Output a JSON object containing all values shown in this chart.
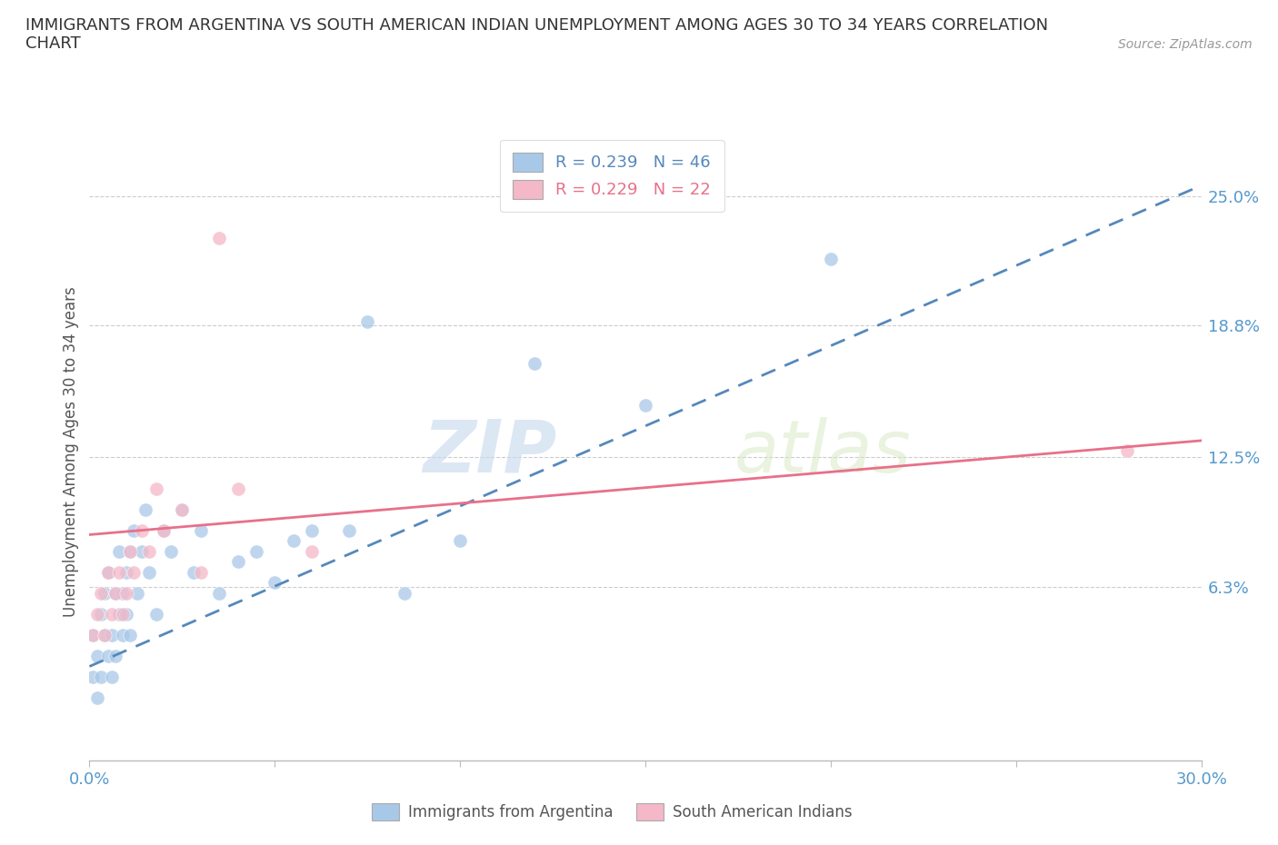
{
  "title": "IMMIGRANTS FROM ARGENTINA VS SOUTH AMERICAN INDIAN UNEMPLOYMENT AMONG AGES 30 TO 34 YEARS CORRELATION\nCHART",
  "source_text": "Source: ZipAtlas.com",
  "ylabel": "Unemployment Among Ages 30 to 34 years",
  "xlim": [
    0.0,
    0.3
  ],
  "ylim": [
    -0.02,
    0.275
  ],
  "xticks": [
    0.0,
    0.05,
    0.1,
    0.15,
    0.2,
    0.25,
    0.3
  ],
  "xticklabels": [
    "0.0%",
    "",
    "",
    "",
    "",
    "",
    "30.0%"
  ],
  "ytick_labels_right": [
    "6.3%",
    "12.5%",
    "18.8%",
    "25.0%"
  ],
  "ytick_values_right": [
    0.063,
    0.125,
    0.188,
    0.25
  ],
  "color_blue": "#a8c8e8",
  "color_pink": "#f4b8c8",
  "color_blue_line": "#5588bb",
  "color_pink_line": "#e8708a",
  "legend_r1": "R = 0.239",
  "legend_n1": "N = 46",
  "legend_r2": "R = 0.229",
  "legend_n2": "N = 22",
  "watermark_zip": "ZIP",
  "watermark_atlas": "atlas",
  "blue_scatter_x": [
    0.001,
    0.001,
    0.002,
    0.002,
    0.003,
    0.003,
    0.004,
    0.004,
    0.005,
    0.005,
    0.006,
    0.006,
    0.007,
    0.007,
    0.008,
    0.008,
    0.009,
    0.009,
    0.01,
    0.01,
    0.011,
    0.011,
    0.012,
    0.013,
    0.014,
    0.015,
    0.016,
    0.018,
    0.02,
    0.022,
    0.025,
    0.028,
    0.03,
    0.035,
    0.04,
    0.045,
    0.05,
    0.055,
    0.06,
    0.07,
    0.075,
    0.085,
    0.1,
    0.12,
    0.15,
    0.2
  ],
  "blue_scatter_y": [
    0.04,
    0.02,
    0.03,
    0.01,
    0.05,
    0.02,
    0.04,
    0.06,
    0.03,
    0.07,
    0.04,
    0.02,
    0.06,
    0.03,
    0.05,
    0.08,
    0.04,
    0.06,
    0.07,
    0.05,
    0.08,
    0.04,
    0.09,
    0.06,
    0.08,
    0.1,
    0.07,
    0.05,
    0.09,
    0.08,
    0.1,
    0.07,
    0.09,
    0.06,
    0.075,
    0.08,
    0.065,
    0.085,
    0.09,
    0.09,
    0.19,
    0.06,
    0.085,
    0.17,
    0.15,
    0.22
  ],
  "pink_scatter_x": [
    0.001,
    0.002,
    0.003,
    0.004,
    0.005,
    0.006,
    0.007,
    0.008,
    0.009,
    0.01,
    0.011,
    0.012,
    0.014,
    0.016,
    0.018,
    0.02,
    0.025,
    0.03,
    0.035,
    0.04,
    0.06,
    0.28
  ],
  "pink_scatter_y": [
    0.04,
    0.05,
    0.06,
    0.04,
    0.07,
    0.05,
    0.06,
    0.07,
    0.05,
    0.06,
    0.08,
    0.07,
    0.09,
    0.08,
    0.11,
    0.09,
    0.1,
    0.07,
    0.23,
    0.11,
    0.08,
    0.128
  ],
  "blue_line_x": [
    0.0,
    0.3
  ],
  "blue_line_y_start": 0.025,
  "blue_line_y_end": 0.255,
  "pink_line_x": [
    0.0,
    0.3
  ],
  "pink_line_y_start": 0.088,
  "pink_line_y_end": 0.133
}
